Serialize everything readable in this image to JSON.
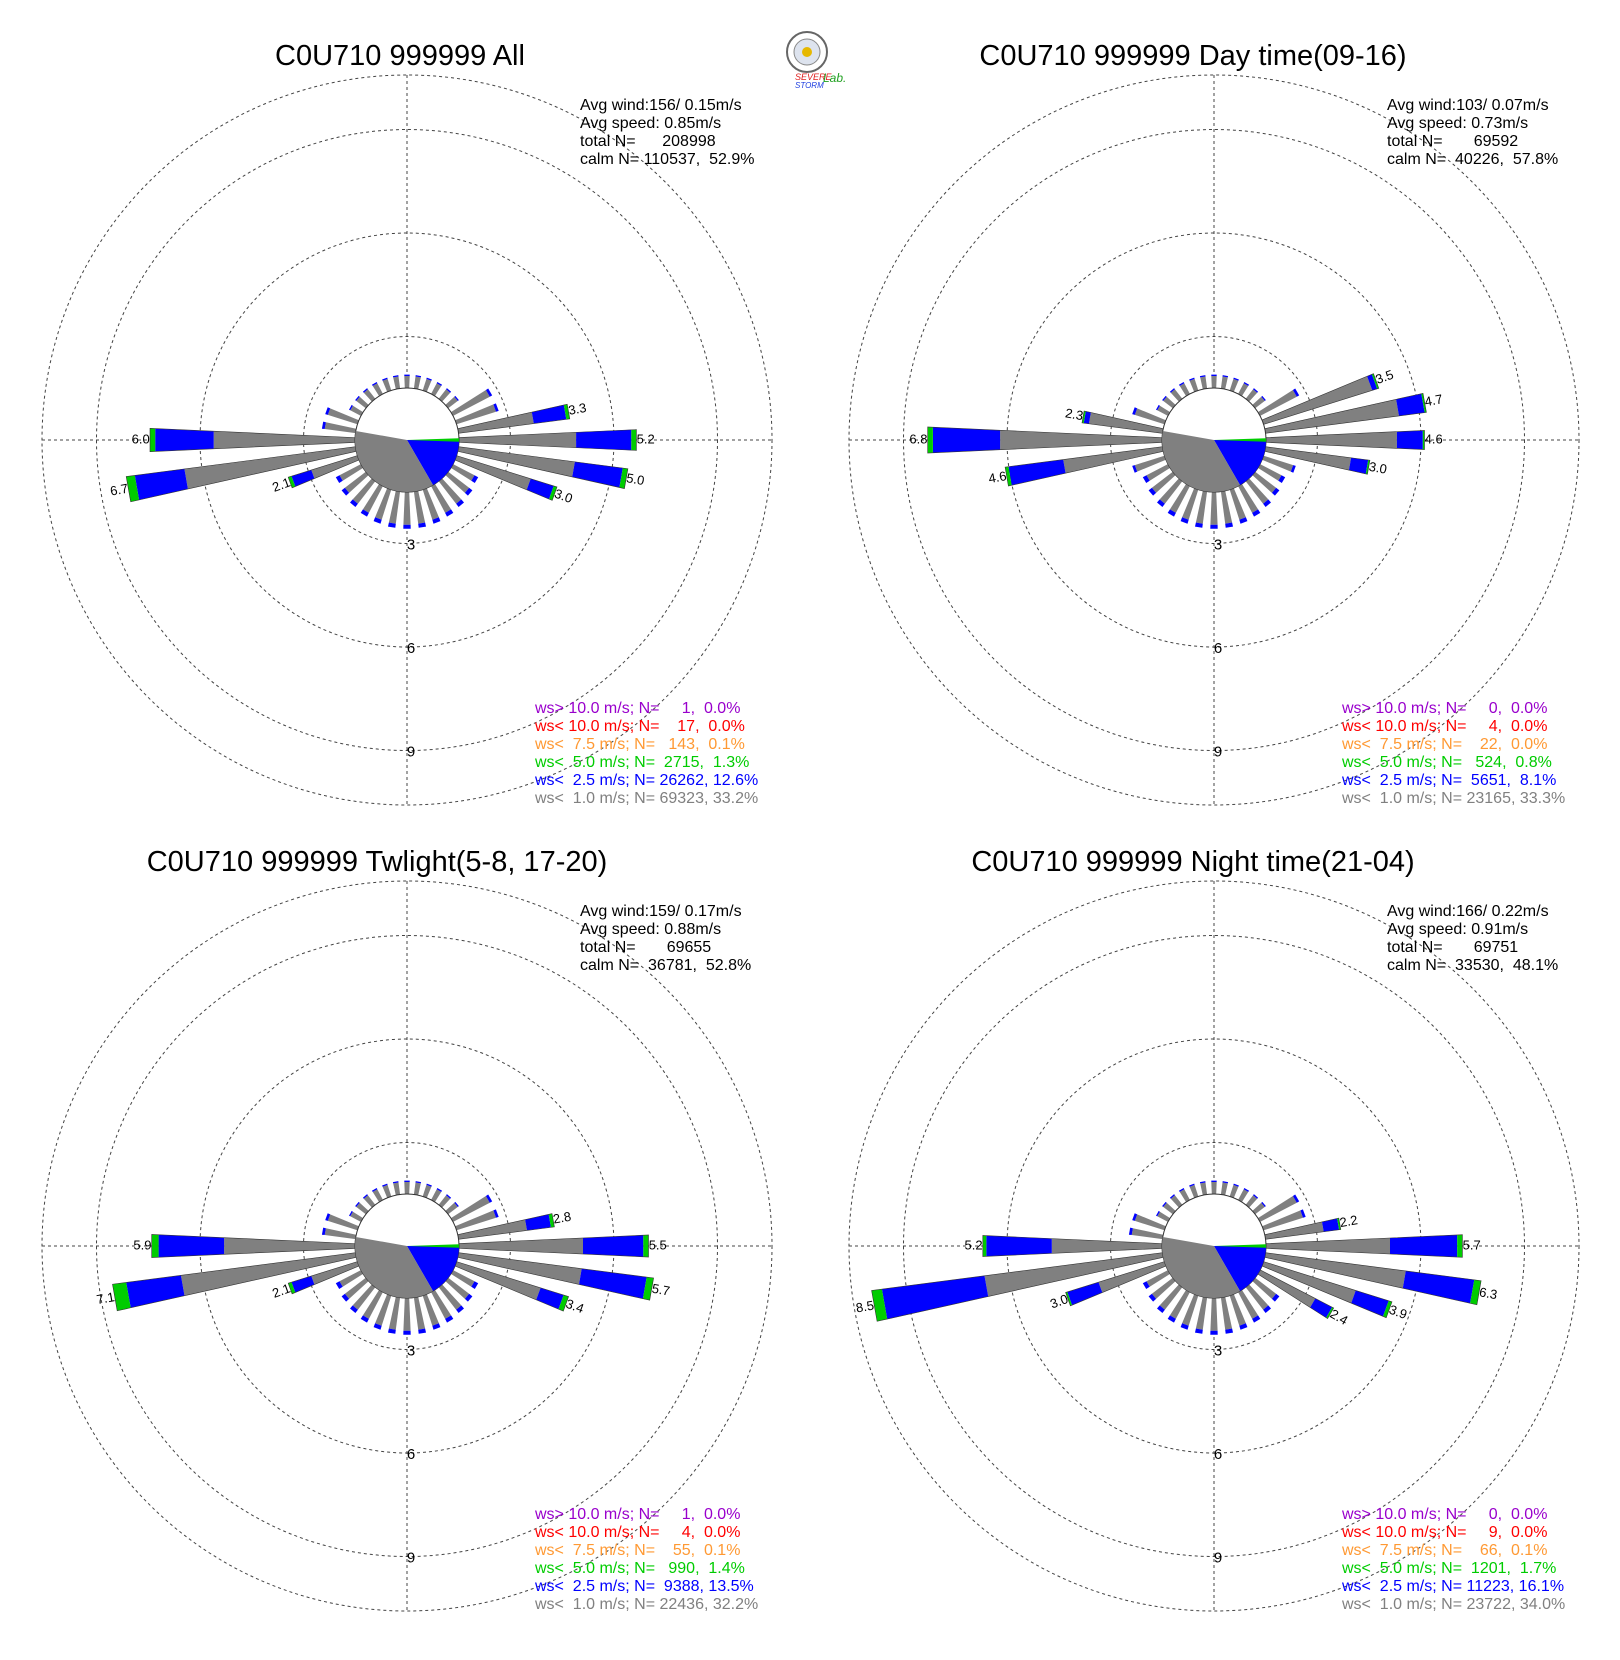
{
  "logo": {
    "text_a": "SEVERE",
    "text_b": "STORM",
    "text_c": "Lab."
  },
  "colors": {
    "ws_gt_10": "#9900cc",
    "ws_lt_10": "#ff0000",
    "ws_lt_7_5": "#ff9933",
    "ws_lt_5": "#00cc00",
    "ws_lt_2_5": "#0000ff",
    "ws_lt_1": "#808080"
  },
  "chart_data": [
    {
      "type": "wind-rose",
      "title": "C0U710 999999 All",
      "stats": [
        "Avg wind:156/ 0.15m/s",
        "Avg speed: 0.85m/s",
        "total N=      208998",
        "calm N= 110537,  52.9%"
      ],
      "legend": [
        {
          "text": "ws> 10.0 m/s; N=     1,  0.0%",
          "color": "#9900cc"
        },
        {
          "text": "ws< 10.0 m/s; N=    17,  0.0%",
          "color": "#ff0000"
        },
        {
          "text": "ws<  7.5 m/s; N=   143,  0.1%",
          "color": "#ff9933"
        },
        {
          "text": "ws<  5.0 m/s; N=  2715,  1.3%",
          "color": "#00cc00"
        },
        {
          "text": "ws<  2.5 m/s; N= 26262, 12.6%",
          "color": "#0000ff"
        },
        {
          "text": "ws<  1.0 m/s; N= 69323, 33.2%",
          "color": "#808080"
        }
      ],
      "ring_labels": [
        "3",
        "6",
        "9"
      ],
      "bars": [
        {
          "dir": 80,
          "gray": 2.2,
          "blue": 0.95,
          "green": 0.1,
          "label": "3.3"
        },
        {
          "dir": 90,
          "gray": 3.4,
          "blue": 1.6,
          "green": 0.15,
          "label": "5.2"
        },
        {
          "dir": 100,
          "gray": 3.4,
          "blue": 1.4,
          "green": 0.15,
          "label": "5.0"
        },
        {
          "dir": 110,
          "gray": 2.25,
          "blue": 0.7,
          "green": 0.1,
          "label": "3.0"
        },
        {
          "dir": 250,
          "gray": 1.4,
          "blue": 0.6,
          "green": 0.1,
          "label": "2.1"
        },
        {
          "dir": 260,
          "gray": 5.0,
          "blue": 1.45,
          "green": 0.25,
          "label": "6.7"
        },
        {
          "dir": 270,
          "gray": 4.1,
          "blue": 1.7,
          "green": 0.15,
          "label": "6.0"
        }
      ]
    },
    {
      "type": "wind-rose",
      "title": "C0U710 999999 Day time(09-16)",
      "stats": [
        "Avg wind:103/ 0.07m/s",
        "Avg speed: 0.73m/s",
        "total N=       69592",
        "calm N=  40226,  57.8%"
      ],
      "legend": [
        {
          "text": "ws> 10.0 m/s; N=     0,  0.0%",
          "color": "#9900cc"
        },
        {
          "text": "ws< 10.0 m/s; N=     4,  0.0%",
          "color": "#ff0000"
        },
        {
          "text": "ws<  7.5 m/s; N=    22,  0.0%",
          "color": "#ff9933"
        },
        {
          "text": "ws<  5.0 m/s; N=   524,  0.8%",
          "color": "#00cc00"
        },
        {
          "text": "ws<  2.5 m/s; N=  5651,  8.1%",
          "color": "#0000ff"
        },
        {
          "text": "ws<  1.0 m/s; N= 23165, 33.3%",
          "color": "#808080"
        }
      ],
      "ring_labels": [
        "3",
        "6",
        "9"
      ],
      "bars": [
        {
          "dir": 70,
          "gray": 3.3,
          "blue": 0.15,
          "green": 0.05,
          "label": "3.5"
        },
        {
          "dir": 80,
          "gray": 3.9,
          "blue": 0.75,
          "green": 0.05,
          "label": "4.7"
        },
        {
          "dir": 90,
          "gray": 3.8,
          "blue": 0.75,
          "green": 0.05,
          "label": "4.6"
        },
        {
          "dir": 100,
          "gray": 2.5,
          "blue": 0.5,
          "green": 0.05,
          "label": "3.0"
        },
        {
          "dir": 260,
          "gray": 2.9,
          "blue": 1.6,
          "green": 0.1,
          "label": "4.6"
        },
        {
          "dir": 270,
          "gray": 4.7,
          "blue": 1.95,
          "green": 0.15,
          "label": "6.8"
        },
        {
          "dir": 280,
          "gray": 2.15,
          "blue": 0.15,
          "green": 0.05,
          "label": "2.3"
        }
      ]
    },
    {
      "type": "wind-rose",
      "title": "C0U710 999999 Twlight(5-8, 17-20)",
      "stats": [
        "Avg wind:159/ 0.17m/s",
        "Avg speed: 0.88m/s",
        "total N=       69655",
        "calm N=  36781,  52.8%"
      ],
      "legend": [
        {
          "text": "ws> 10.0 m/s; N=     1,  0.0%",
          "color": "#9900cc"
        },
        {
          "text": "ws< 10.0 m/s; N=     4,  0.0%",
          "color": "#ff0000"
        },
        {
          "text": "ws<  7.5 m/s; N=    55,  0.1%",
          "color": "#ff9933"
        },
        {
          "text": "ws<  5.0 m/s; N=   990,  1.4%",
          "color": "#00cc00"
        },
        {
          "text": "ws<  2.5 m/s; N=  9388, 13.5%",
          "color": "#0000ff"
        },
        {
          "text": "ws<  1.0 m/s; N= 22436, 32.2%",
          "color": "#808080"
        }
      ],
      "ring_labels": [
        "3",
        "6",
        "9"
      ],
      "bars": [
        {
          "dir": 80,
          "gray": 2.0,
          "blue": 0.7,
          "green": 0.1,
          "label": "2.8"
        },
        {
          "dir": 90,
          "gray": 3.6,
          "blue": 1.75,
          "green": 0.15,
          "label": "5.5"
        },
        {
          "dir": 100,
          "gray": 3.6,
          "blue": 1.9,
          "green": 0.2,
          "label": "5.7"
        },
        {
          "dir": 110,
          "gray": 2.55,
          "blue": 0.7,
          "green": 0.15,
          "label": "3.4"
        },
        {
          "dir": 250,
          "gray": 1.4,
          "blue": 0.6,
          "green": 0.1,
          "label": "2.1"
        },
        {
          "dir": 260,
          "gray": 5.1,
          "blue": 1.6,
          "green": 0.4,
          "label": "7.1"
        },
        {
          "dir": 270,
          "gray": 3.8,
          "blue": 1.9,
          "green": 0.2,
          "label": "5.9"
        }
      ]
    },
    {
      "type": "wind-rose",
      "title": "C0U710 999999 Night time(21-04)",
      "stats": [
        "Avg wind:166/ 0.22m/s",
        "Avg speed: 0.91m/s",
        "total N=       69751",
        "calm N=  33530,  48.1%"
      ],
      "legend": [
        {
          "text": "ws> 10.0 m/s; N=     0,  0.0%",
          "color": "#9900cc"
        },
        {
          "text": "ws< 10.0 m/s; N=     9,  0.0%",
          "color": "#ff0000"
        },
        {
          "text": "ws<  7.5 m/s; N=    66,  0.1%",
          "color": "#ff9933"
        },
        {
          "text": "ws<  5.0 m/s; N=  1201,  1.7%",
          "color": "#00cc00"
        },
        {
          "text": "ws<  2.5 m/s; N= 11223, 16.1%",
          "color": "#0000ff"
        },
        {
          "text": "ws<  1.0 m/s; N= 23722, 34.0%",
          "color": "#808080"
        }
      ],
      "ring_labels": [
        "3",
        "6",
        "9"
      ],
      "bars": [
        {
          "dir": 80,
          "gray": 1.7,
          "blue": 0.45,
          "green": 0.05,
          "label": "2.2"
        },
        {
          "dir": 90,
          "gray": 3.6,
          "blue": 1.95,
          "green": 0.15,
          "label": "5.7"
        },
        {
          "dir": 100,
          "gray": 4.1,
          "blue": 2.0,
          "green": 0.2,
          "label": "6.3"
        },
        {
          "dir": 110,
          "gray": 2.8,
          "blue": 1.0,
          "green": 0.1,
          "label": "3.9"
        },
        {
          "dir": 120,
          "gray": 1.8,
          "blue": 0.55,
          "green": 0.05,
          "label": "2.4"
        },
        {
          "dir": 250,
          "gray": 2.0,
          "blue": 0.95,
          "green": 0.05,
          "label": "3.0"
        },
        {
          "dir": 260,
          "gray": 5.2,
          "blue": 3.0,
          "green": 0.3,
          "label": "8.5"
        },
        {
          "dir": 270,
          "gray": 3.2,
          "blue": 1.9,
          "green": 0.1,
          "label": "5.2"
        }
      ]
    }
  ]
}
